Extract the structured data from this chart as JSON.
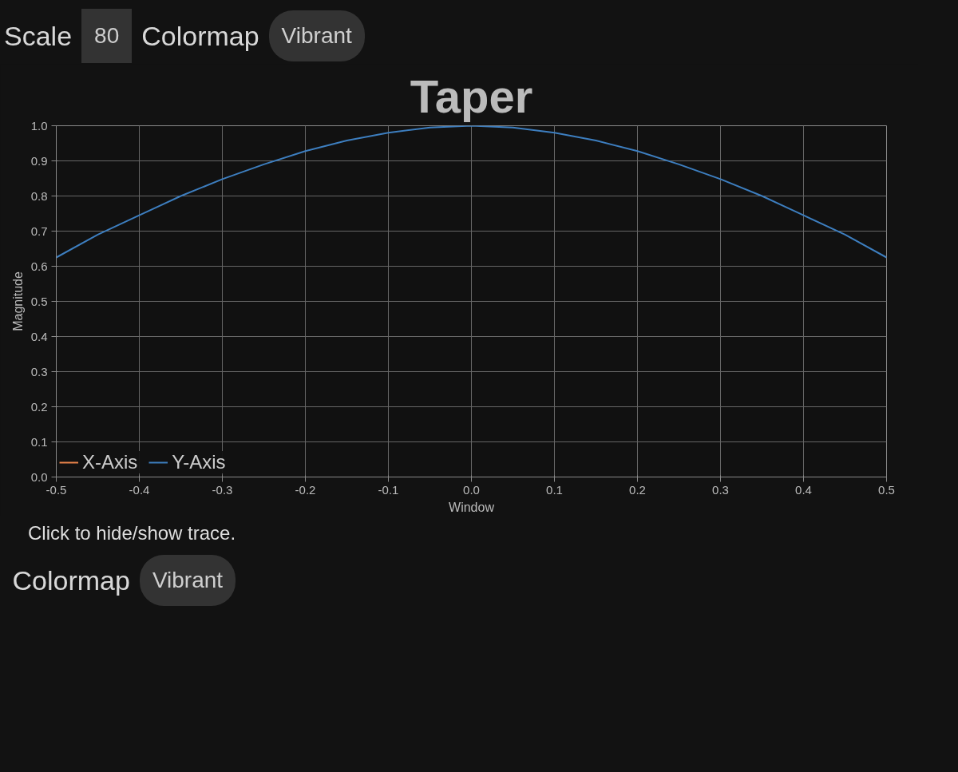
{
  "chart_data": {
    "type": "line",
    "title": "Taper",
    "xlabel": "Window",
    "ylabel": "Magnitude",
    "x": [
      -0.5,
      -0.45,
      -0.4,
      -0.35,
      -0.3,
      -0.25,
      -0.2,
      -0.15,
      -0.1,
      -0.05,
      0,
      0.05,
      0.1,
      0.15,
      0.2,
      0.25,
      0.3,
      0.35,
      0.4,
      0.45,
      0.5
    ],
    "series": [
      {
        "name": "X-Axis",
        "color": "#e8834a",
        "values": [
          null,
          null,
          null,
          null,
          null,
          null,
          null,
          null,
          null,
          null,
          null,
          null,
          null,
          null,
          null,
          null,
          null,
          null,
          null,
          null,
          null
        ]
      },
      {
        "name": "Y-Axis",
        "color": "#3d7ebf",
        "values": [
          0.625,
          0.69,
          0.745,
          0.8,
          0.848,
          0.89,
          0.928,
          0.958,
          0.98,
          0.995,
          1.0,
          0.995,
          0.98,
          0.958,
          0.928,
          0.89,
          0.848,
          0.8,
          0.745,
          0.69,
          0.625
        ]
      }
    ],
    "xlim": [
      -0.5,
      0.5
    ],
    "ylim": [
      0,
      1
    ],
    "xticks": [
      {
        "value": -0.5,
        "label": "-0.5"
      },
      {
        "value": -0.4,
        "label": "-0.4"
      },
      {
        "value": -0.3,
        "label": "-0.3"
      },
      {
        "value": -0.2,
        "label": "-0.2"
      },
      {
        "value": -0.1,
        "label": "-0.1"
      },
      {
        "value": 0,
        "label": "0.0"
      },
      {
        "value": 0.1,
        "label": "0.1"
      },
      {
        "value": 0.2,
        "label": "0.2"
      },
      {
        "value": 0.3,
        "label": "0.3"
      },
      {
        "value": 0.4,
        "label": "0.4"
      },
      {
        "value": 0.5,
        "label": "0.5"
      }
    ],
    "yticks": [
      {
        "value": 0,
        "label": "0.0"
      },
      {
        "value": 0.1,
        "label": "0.1"
      },
      {
        "value": 0.2,
        "label": "0.2"
      },
      {
        "value": 0.3,
        "label": "0.3"
      },
      {
        "value": 0.4,
        "label": "0.4"
      },
      {
        "value": 0.5,
        "label": "0.5"
      },
      {
        "value": 0.6,
        "label": "0.6"
      },
      {
        "value": 0.7,
        "label": "0.7"
      },
      {
        "value": 0.8,
        "label": "0.8"
      },
      {
        "value": 0.9,
        "label": "0.9"
      },
      {
        "value": 1,
        "label": "1.0"
      }
    ],
    "grid": true,
    "legend": "bottom left",
    "marker": "none",
    "line_style": "solid",
    "annotations": [
      "Scale",
      "80",
      "Colormap",
      "Vibrant",
      "Click to hide/show trace.",
      "Colormap",
      "Vibrant"
    ]
  }
}
